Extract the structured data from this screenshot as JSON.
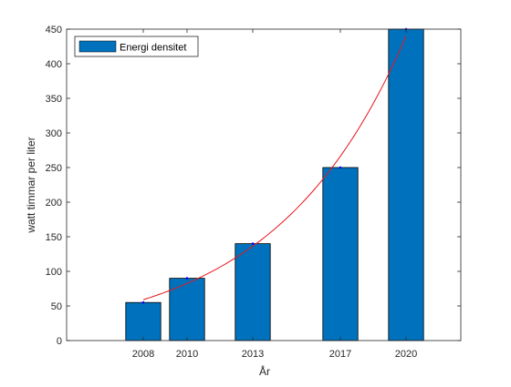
{
  "chart_data": {
    "type": "bar",
    "title": "",
    "xlabel": "År",
    "ylabel": "watt timmar per liter",
    "x": [
      2008,
      2010,
      2013,
      2017,
      2020
    ],
    "xlim": [
      2004.5,
      2022.5
    ],
    "ylim": [
      0,
      450
    ],
    "yticks": [
      0,
      50,
      100,
      150,
      200,
      250,
      300,
      350,
      400,
      450
    ],
    "series": [
      {
        "name": "Energi densitet",
        "values": [
          55,
          90,
          140,
          250,
          450
        ]
      }
    ],
    "fit_curve": {
      "type": "exponential",
      "x_range": [
        2008,
        2020
      ],
      "color": "#e8141c"
    },
    "bar_width_years": 1.6,
    "legend": {
      "position": "top-left",
      "entries": [
        "Energi densitet"
      ]
    },
    "grid": false,
    "colors": {
      "bar": "#0072bd",
      "bar_edge": "#000000",
      "points": "#0000ff",
      "axis": "#262626"
    }
  }
}
